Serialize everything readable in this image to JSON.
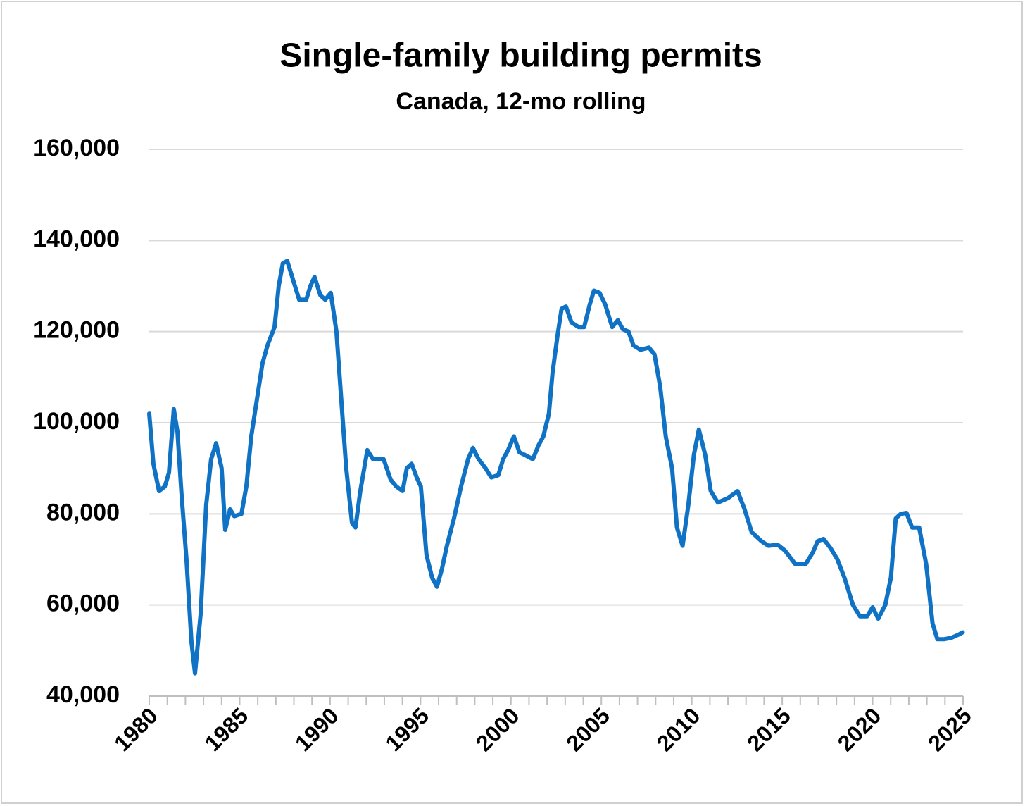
{
  "chart_data": {
    "type": "line",
    "title": "Single-family building permits",
    "subtitle": "Canada, 12-mo rolling",
    "xlim": [
      1980,
      2025
    ],
    "xticks": [
      1980,
      1985,
      1990,
      1995,
      2000,
      2005,
      2010,
      2015,
      2020,
      2025
    ],
    "xminorticks": [
      1980,
      1981,
      1982,
      1983,
      1984,
      1985,
      1986,
      1987,
      1988,
      1989,
      1990,
      1991,
      1992,
      1993,
      1994,
      1995,
      1996,
      1997,
      1998,
      1999,
      2000,
      2001,
      2002,
      2003,
      2004,
      2005,
      2006,
      2007,
      2008,
      2009,
      2010,
      2011,
      2012,
      2013,
      2014,
      2015,
      2016,
      2017,
      2018,
      2019,
      2020,
      2021,
      2022,
      2023,
      2024,
      2025
    ],
    "ylim": [
      40000,
      160000
    ],
    "yticks": [
      {
        "value": 40000,
        "label": "40,000"
      },
      {
        "value": 60000,
        "label": "60,000"
      },
      {
        "value": 80000,
        "label": "80,000"
      },
      {
        "value": 100000,
        "label": "100,000"
      },
      {
        "value": 120000,
        "label": "120,000"
      },
      {
        "value": 140000,
        "label": "140,000"
      },
      {
        "value": 160000,
        "label": "160,000"
      }
    ],
    "grid": true,
    "series": [
      {
        "color": "#0f72c4",
        "x": [
          1980.0,
          1980.23,
          1980.54,
          1980.86,
          1981.09,
          1981.36,
          1981.56,
          1981.79,
          1982.06,
          1982.33,
          1982.53,
          1982.84,
          1983.15,
          1983.42,
          1983.7,
          1984.0,
          1984.2,
          1984.47,
          1984.7,
          1985.1,
          1985.37,
          1985.64,
          1985.95,
          1986.26,
          1986.54,
          1986.93,
          1987.16,
          1987.39,
          1987.63,
          1987.98,
          1988.29,
          1988.68,
          1988.91,
          1989.14,
          1989.46,
          1989.73,
          1990.04,
          1990.35,
          1990.62,
          1990.89,
          1991.21,
          1991.4,
          1991.67,
          1992.06,
          1992.37,
          1992.96,
          1993.35,
          1993.66,
          1994.01,
          1994.24,
          1994.51,
          1994.79,
          1995.02,
          1995.33,
          1995.64,
          1995.91,
          1996.19,
          1996.46,
          1996.85,
          1997.24,
          1997.63,
          1997.9,
          1998.21,
          1998.6,
          1998.91,
          1999.3,
          1999.57,
          1999.84,
          2000.16,
          2000.47,
          2000.74,
          2001.21,
          2001.52,
          2001.79,
          2002.1,
          2002.3,
          2002.57,
          2002.8,
          2003.04,
          2003.35,
          2003.74,
          2004.05,
          2004.36,
          2004.59,
          2004.9,
          2005.21,
          2005.6,
          2005.91,
          2006.19,
          2006.5,
          2006.77,
          2007.16,
          2007.63,
          2007.94,
          2008.25,
          2008.56,
          2008.91,
          2009.18,
          2009.49,
          2009.81,
          2010.12,
          2010.39,
          2010.74,
          2011.05,
          2011.44,
          2012.02,
          2012.53,
          2012.92,
          2013.31,
          2013.85,
          2014.24,
          2014.75,
          2015.14,
          2015.72,
          2016.3,
          2016.69,
          2016.96,
          2017.28,
          2017.67,
          2018.05,
          2018.44,
          2018.91,
          2019.3,
          2019.69,
          2020.0,
          2020.31,
          2020.7,
          2021.01,
          2021.28,
          2021.56,
          2021.87,
          2022.18,
          2022.57,
          2022.96,
          2023.31,
          2023.58,
          2023.97,
          2024.36,
          2024.75,
          2024.98
        ],
        "values": [
          102000,
          91000,
          85000,
          86000,
          89000,
          103000,
          98000,
          84000,
          70000,
          52000,
          45000,
          58000,
          82000,
          92000,
          95500,
          90000,
          76500,
          81000,
          79500,
          80000,
          86000,
          97000,
          105000,
          113000,
          117000,
          121000,
          130000,
          135000,
          135500,
          131000,
          127000,
          127000,
          130000,
          132000,
          128000,
          127000,
          128500,
          120000,
          105000,
          90000,
          78000,
          77000,
          85000,
          94000,
          92000,
          92000,
          87500,
          86000,
          85000,
          90000,
          91000,
          88000,
          86000,
          71000,
          66000,
          64000,
          68000,
          73000,
          79000,
          86000,
          92000,
          94500,
          92000,
          90000,
          88000,
          88500,
          92000,
          94000,
          97000,
          93500,
          93000,
          92000,
          95000,
          97000,
          102000,
          111000,
          119000,
          125000,
          125500,
          122000,
          121000,
          121000,
          126000,
          129000,
          128500,
          126000,
          121000,
          122500,
          120500,
          120000,
          117000,
          116000,
          116500,
          115000,
          108000,
          97000,
          90000,
          77000,
          73000,
          82000,
          93000,
          98500,
          93000,
          85000,
          82500,
          83500,
          85000,
          81000,
          76000,
          74000,
          73000,
          73200,
          72000,
          69000,
          69000,
          71500,
          74000,
          74500,
          72500,
          70000,
          66000,
          60000,
          57500,
          57500,
          59500,
          57000,
          60000,
          66000,
          79000,
          80000,
          80200,
          77000,
          77000,
          69000,
          56000,
          52500,
          52500,
          52800,
          53500,
          54000
        ]
      }
    ]
  }
}
